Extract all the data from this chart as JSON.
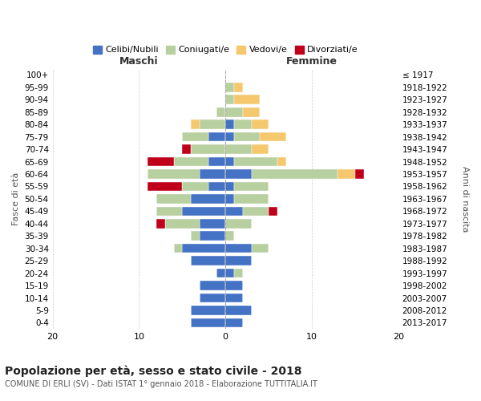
{
  "age_groups": [
    "0-4",
    "5-9",
    "10-14",
    "15-19",
    "20-24",
    "25-29",
    "30-34",
    "35-39",
    "40-44",
    "45-49",
    "50-54",
    "55-59",
    "60-64",
    "65-69",
    "70-74",
    "75-79",
    "80-84",
    "85-89",
    "90-94",
    "95-99",
    "100+"
  ],
  "birth_years": [
    "2013-2017",
    "2008-2012",
    "2003-2007",
    "1998-2002",
    "1993-1997",
    "1988-1992",
    "1983-1987",
    "1978-1982",
    "1973-1977",
    "1968-1972",
    "1963-1967",
    "1958-1962",
    "1953-1957",
    "1948-1952",
    "1943-1947",
    "1938-1942",
    "1933-1937",
    "1928-1932",
    "1923-1927",
    "1918-1922",
    "≤ 1917"
  ],
  "maschi": {
    "celibi": [
      4,
      4,
      3,
      3,
      1,
      4,
      5,
      3,
      3,
      5,
      4,
      2,
      3,
      2,
      0,
      2,
      0,
      0,
      0,
      0,
      0
    ],
    "coniugati": [
      0,
      0,
      0,
      0,
      0,
      0,
      1,
      1,
      4,
      3,
      4,
      3,
      6,
      4,
      4,
      3,
      3,
      1,
      0,
      0,
      0
    ],
    "vedovi": [
      0,
      0,
      0,
      0,
      0,
      0,
      0,
      0,
      0,
      0,
      0,
      0,
      0,
      0,
      0,
      0,
      1,
      0,
      0,
      0,
      0
    ],
    "divorziati": [
      0,
      0,
      0,
      0,
      0,
      0,
      0,
      0,
      1,
      0,
      0,
      4,
      0,
      3,
      1,
      0,
      0,
      0,
      0,
      0,
      0
    ]
  },
  "femmine": {
    "nubili": [
      2,
      3,
      2,
      2,
      1,
      3,
      3,
      0,
      0,
      2,
      1,
      1,
      3,
      1,
      0,
      1,
      1,
      0,
      0,
      0,
      0
    ],
    "coniugate": [
      0,
      0,
      0,
      0,
      1,
      0,
      2,
      1,
      3,
      3,
      4,
      4,
      10,
      5,
      3,
      3,
      2,
      2,
      1,
      1,
      0
    ],
    "vedove": [
      0,
      0,
      0,
      0,
      0,
      0,
      0,
      0,
      0,
      0,
      0,
      0,
      2,
      1,
      2,
      3,
      2,
      2,
      3,
      1,
      0
    ],
    "divorziate": [
      0,
      0,
      0,
      0,
      0,
      0,
      0,
      0,
      0,
      1,
      0,
      0,
      1,
      0,
      0,
      0,
      0,
      0,
      0,
      0,
      0
    ]
  },
  "colors": {
    "celibi_nubili": "#4472c4",
    "coniugati": "#b8cfa0",
    "vedovi": "#f5c86e",
    "divorziati": "#c0001a"
  },
  "xlim": 20,
  "title": "Popolazione per età, sesso e stato civile - 2018",
  "subtitle": "COMUNE DI ERLI (SV) - Dati ISTAT 1° gennaio 2018 - Elaborazione TUTTITALIA.IT",
  "ylabel_left": "Fasce di età",
  "ylabel_right": "Anni di nascita",
  "xlabel_left": "Maschi",
  "xlabel_right": "Femmine"
}
